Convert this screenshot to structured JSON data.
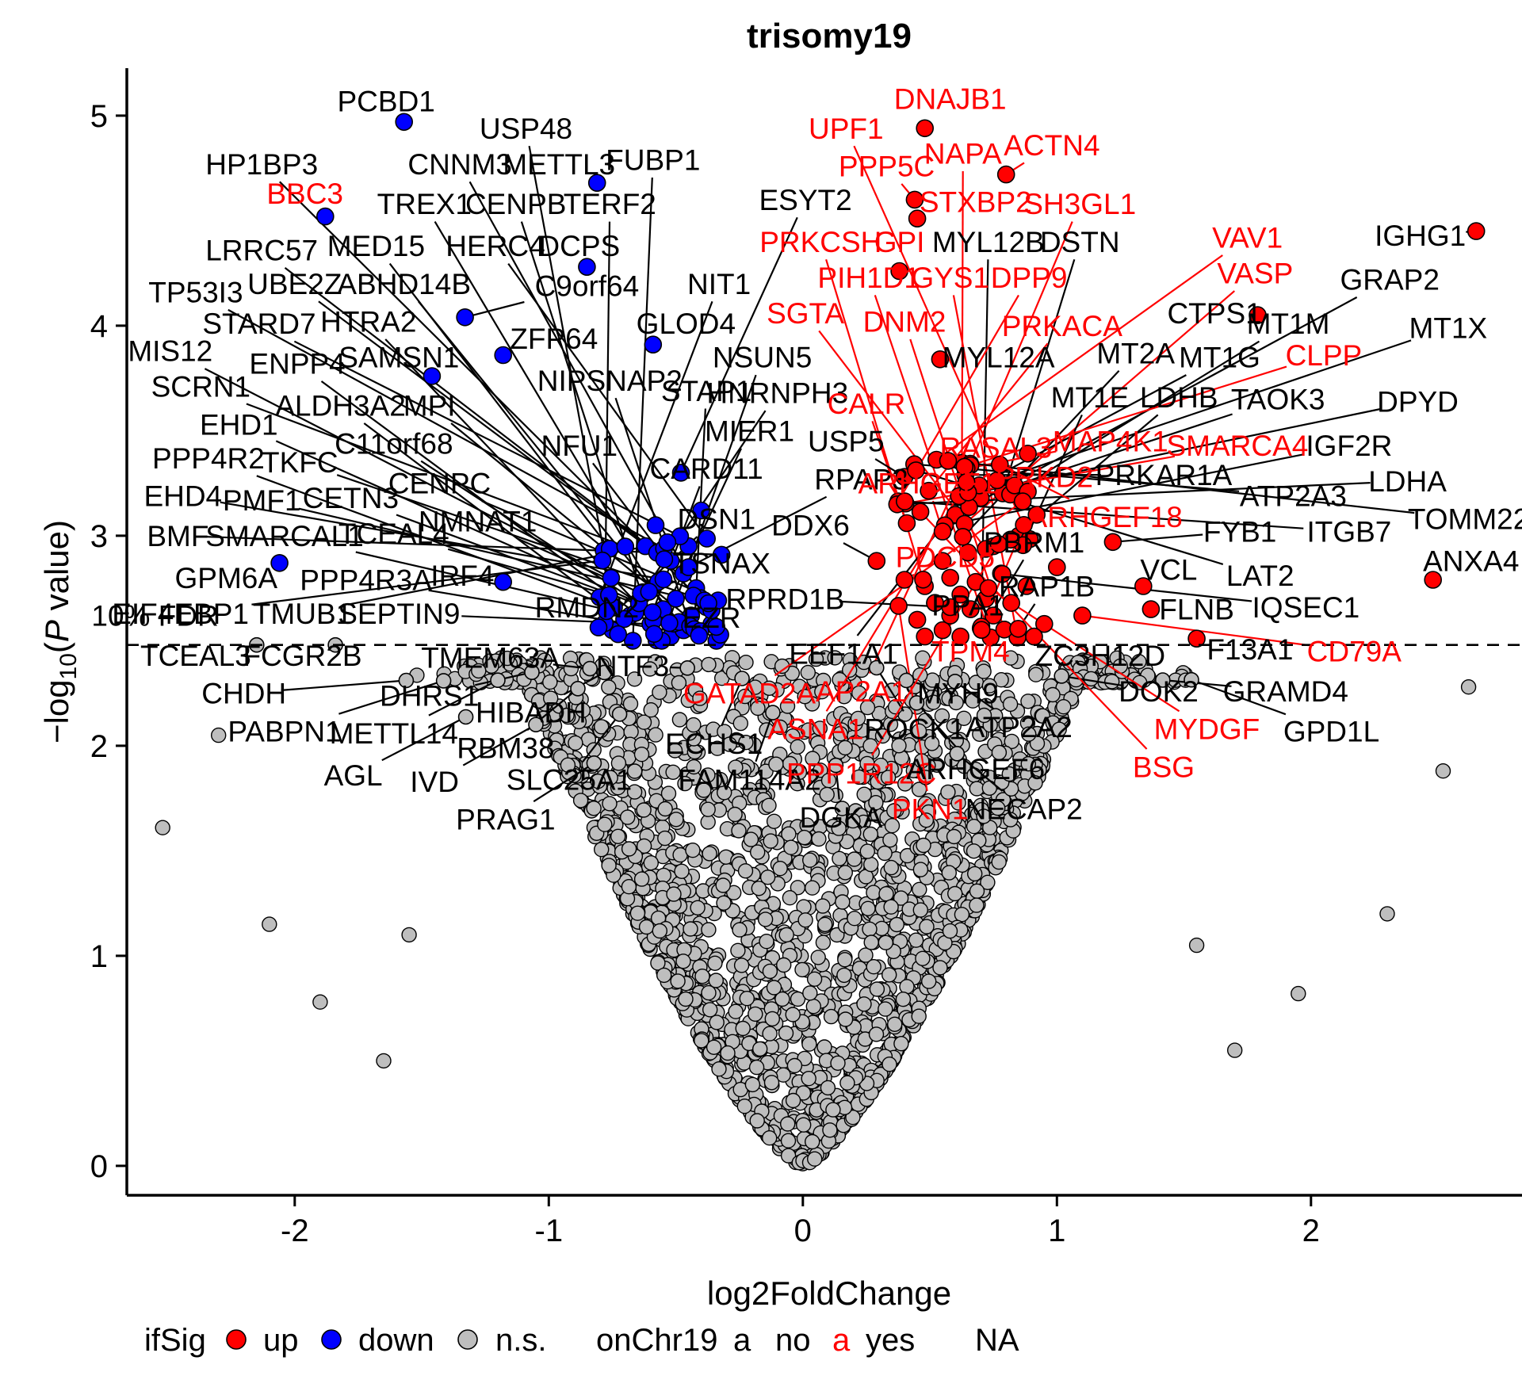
{
  "title": "trisomy19",
  "axes": {
    "x": {
      "label": "log2FoldChange",
      "tick_labels": [
        "-2",
        "-1",
        "0",
        "1",
        "2"
      ],
      "tick_values": [
        -2,
        -1,
        0,
        1,
        2
      ],
      "range": [
        -2.661,
        2.871
      ]
    },
    "y": {
      "label": "-log10(P value)",
      "label_parts": {
        "prefix": "−log",
        "sub": "10",
        "mid": "(",
        "italic": "P",
        "suffix": " value)"
      },
      "tick_labels": [
        "0",
        "1",
        "2",
        "3",
        "4",
        "5"
      ],
      "tick_values": [
        0,
        1,
        2,
        3,
        4,
        5
      ],
      "range": [
        -0.14,
        5.226
      ]
    }
  },
  "fdr": {
    "value": 2.48,
    "label": "10% FDR"
  },
  "legend": {
    "ifsig_title": "ifSig",
    "items": [
      {
        "label": "up",
        "color": "#FF0000"
      },
      {
        "label": "down",
        "color": "#0000FF"
      },
      {
        "label": "n.s.",
        "color": "#BEBEBE"
      }
    ],
    "onchr19_title": "onChr19",
    "glyph": "a",
    "chr_items": [
      {
        "label": "no",
        "color": "#000000"
      },
      {
        "label": "yes",
        "color": "#FF0000"
      }
    ],
    "na_label": "NA"
  },
  "colors": {
    "up": "#FF0000",
    "down": "#0000FF",
    "ns": "#BEBEBE",
    "chr19_label": "#FF0000",
    "other_label": "#000000"
  },
  "chart_data": {
    "type": "scatter",
    "title": "trisomy19",
    "xlabel": "log2FoldChange",
    "ylabel": "-log10(P value)",
    "xlim": [
      -2.661,
      2.871
    ],
    "ylim": [
      -0.14,
      5.226
    ],
    "sig_threshold_y": 2.48,
    "genes": [
      [
        "PCBD1",
        "k",
        -1.64,
        5.07,
        -1.57,
        4.97,
        "blue"
      ],
      [
        "USP48",
        "k",
        -1.09,
        4.94
      ],
      [
        "HP1BP3",
        "k",
        -2.13,
        4.77
      ],
      [
        "CNNM3",
        "k",
        -1.35,
        4.77
      ],
      [
        "METTL3",
        "k",
        -0.96,
        4.77,
        -0.81,
        4.68,
        "blue"
      ],
      [
        "FUBP1",
        "k",
        -0.59,
        4.79
      ],
      [
        "DNAJB1",
        "r",
        0.58,
        5.08,
        0.48,
        4.94,
        "red"
      ],
      [
        "UPF1",
        "r",
        0.17,
        4.94
      ],
      [
        "PPP5C",
        "r",
        0.33,
        4.76,
        0.44,
        4.6,
        "red"
      ],
      [
        "NAPA",
        "r",
        0.63,
        4.82
      ],
      [
        "ACTN4",
        "r",
        0.98,
        4.86,
        0.8,
        4.72,
        "red"
      ],
      [
        "BBC3",
        "r",
        -1.96,
        4.63,
        -1.88,
        4.52,
        "blue"
      ],
      [
        "TREX1",
        "k",
        -1.49,
        4.58
      ],
      [
        "CENPB",
        "k",
        -1.13,
        4.58
      ],
      [
        "TERF2",
        "k",
        -0.76,
        4.58
      ],
      [
        "ESYT2",
        "k",
        0.01,
        4.6,
        -0.48,
        3.3,
        "blue"
      ],
      [
        "STXBP2",
        "r",
        0.68,
        4.59,
        0.45,
        4.51,
        "red"
      ],
      [
        "SH3GL1",
        "r",
        1.09,
        4.58
      ],
      [
        "LRRC57",
        "k",
        -2.13,
        4.36
      ],
      [
        "MED15",
        "k",
        -1.68,
        4.38
      ],
      [
        "HERC4",
        "k",
        -1.21,
        4.38
      ],
      [
        "DCPS",
        "k",
        -0.88,
        4.38,
        -0.85,
        4.28,
        "blue"
      ],
      [
        "PRKCSH",
        "r",
        0.07,
        4.4
      ],
      [
        "GPI",
        "r",
        0.38,
        4.4,
        0.38,
        4.26,
        "red"
      ],
      [
        "MYL12B",
        "k",
        0.73,
        4.4
      ],
      [
        "DSTN",
        "k",
        1.09,
        4.4
      ],
      [
        "VAV1",
        "r",
        1.75,
        4.42
      ],
      [
        "IGHG1",
        "k",
        2.43,
        4.43,
        2.65,
        4.45,
        "red"
      ],
      [
        "TP53I3",
        "k",
        -2.39,
        4.16
      ],
      [
        "UBE2Z",
        "k",
        -2.0,
        4.2
      ],
      [
        "ABHD14B",
        "k",
        -1.57,
        4.2
      ],
      [
        "C9orf64",
        "k",
        -0.85,
        4.19,
        -1.33,
        4.04,
        "blue"
      ],
      [
        "NIT1",
        "k",
        -0.33,
        4.2
      ],
      [
        "PIH1D1",
        "r",
        0.26,
        4.23
      ],
      [
        "GYS1",
        "r",
        0.58,
        4.23
      ],
      [
        "DPP9",
        "r",
        0.89,
        4.23
      ],
      [
        "VASP",
        "r",
        1.78,
        4.25
      ],
      [
        "GRAP2",
        "k",
        2.31,
        4.22
      ],
      [
        "STARD7",
        "k",
        -2.14,
        4.01
      ],
      [
        "HTRA2",
        "k",
        -1.71,
        4.02
      ],
      [
        "ZFP64",
        "k",
        -0.98,
        3.94,
        -1.18,
        3.86,
        "blue"
      ],
      [
        "GLOD4",
        "k",
        -0.46,
        4.01,
        -0.59,
        3.91,
        "blue"
      ],
      [
        "SGTA",
        "r",
        0.01,
        4.06
      ],
      [
        "DNM2",
        "r",
        0.4,
        4.02
      ],
      [
        "PRKACA",
        "r",
        1.02,
        4.0
      ],
      [
        "CTPS1",
        "k",
        1.62,
        4.06,
        1.79,
        4.05,
        "red"
      ],
      [
        "MT1M",
        "k",
        1.91,
        4.01
      ],
      [
        "MT1X",
        "k",
        2.54,
        3.99
      ],
      [
        "MIS12",
        "k",
        -2.49,
        3.88
      ],
      [
        "ENPP4",
        "k",
        -1.99,
        3.82
      ],
      [
        "SAMSN1",
        "k",
        -1.59,
        3.85,
        -1.46,
        3.76,
        "blue"
      ],
      [
        "NIPSNAP2",
        "k",
        -0.76,
        3.74
      ],
      [
        "NSUN5",
        "k",
        -0.16,
        3.85
      ],
      [
        "MYL12A",
        "k",
        0.77,
        3.85,
        0.54,
        3.84,
        "red"
      ],
      [
        "MT2A",
        "k",
        1.31,
        3.87
      ],
      [
        "MT1G",
        "k",
        1.64,
        3.85
      ],
      [
        "CLPP",
        "r",
        2.05,
        3.86
      ],
      [
        "SCRN1",
        "k",
        -2.37,
        3.71
      ],
      [
        "ALDH3A2",
        "k",
        -1.82,
        3.62
      ],
      [
        "MPI",
        "k",
        -1.47,
        3.62
      ],
      [
        "STAP1",
        "k",
        -0.38,
        3.69
      ],
      [
        "HNRNPH3",
        "k",
        -0.1,
        3.68
      ],
      [
        "CALR",
        "r",
        0.25,
        3.63
      ],
      [
        "MT1E",
        "k",
        1.13,
        3.66
      ],
      [
        "LDHB",
        "k",
        1.48,
        3.66
      ],
      [
        "TAOK3",
        "k",
        1.87,
        3.65
      ],
      [
        "DPYD",
        "k",
        2.42,
        3.64
      ],
      [
        "EHD1",
        "k",
        -2.22,
        3.53
      ],
      [
        "C11orf68",
        "k",
        -1.61,
        3.44
      ],
      [
        "NFU1",
        "k",
        -0.88,
        3.43
      ],
      [
        "MIER1",
        "k",
        -0.21,
        3.5
      ],
      [
        "USP5",
        "k",
        0.17,
        3.45,
        0.4,
        3.28,
        "red"
      ],
      [
        "RASAL3",
        "r",
        0.76,
        3.42
      ],
      [
        "MAP4K1",
        "r",
        1.21,
        3.45
      ],
      [
        "SMARCA4",
        "r",
        1.71,
        3.43
      ],
      [
        "IGF2R",
        "k",
        2.15,
        3.43
      ],
      [
        "PPP4R2",
        "k",
        -2.34,
        3.37
      ],
      [
        "TKFC",
        "k",
        -1.98,
        3.35
      ],
      [
        "CENPC",
        "k",
        -1.43,
        3.25
      ],
      [
        "CARD11",
        "k",
        -0.38,
        3.32
      ],
      [
        "RPAP3",
        "k",
        0.23,
        3.27,
        -0.45,
        2.85,
        "blue"
      ],
      [
        "ARHGEF1",
        "r",
        0.49,
        3.25,
        0.55,
        3.02,
        "red"
      ],
      [
        "PRKD2",
        "r",
        0.95,
        3.28
      ],
      [
        "PRKAR1A",
        "k",
        1.42,
        3.29
      ],
      [
        "LDHA",
        "k",
        2.38,
        3.26
      ],
      [
        "EHD4",
        "k",
        -2.44,
        3.19
      ],
      [
        "PMF1",
        "k",
        -2.13,
        3.17
      ],
      [
        "CETN3",
        "k",
        -1.78,
        3.18
      ],
      [
        "NMNAT1",
        "k",
        -1.28,
        3.07
      ],
      [
        "DSN1",
        "k",
        -0.34,
        3.08
      ],
      [
        "DDX6",
        "k",
        0.03,
        3.05,
        0.29,
        2.88,
        "red"
      ],
      [
        "ARHGEF18",
        "r",
        1.19,
        3.09
      ],
      [
        "ATP2A3",
        "k",
        1.93,
        3.19
      ],
      [
        "TOMM22",
        "k",
        2.62,
        3.08
      ],
      [
        "BMF",
        "k",
        -2.46,
        3.0
      ],
      [
        "SMARCAL1",
        "k",
        -2.04,
        3.0
      ],
      [
        "TCEAL4",
        "k",
        -1.61,
        3.01
      ],
      [
        "TSNAX",
        "k",
        -0.32,
        2.87
      ],
      [
        "PDCD5",
        "r",
        0.56,
        2.9,
        0.4,
        2.79,
        "red"
      ],
      [
        "PBRM1",
        "k",
        0.91,
        2.97
      ],
      [
        "FYB1",
        "k",
        1.72,
        3.02,
        1.22,
        2.97,
        "red"
      ],
      [
        "ITGB7",
        "k",
        2.15,
        3.02
      ],
      [
        "ANXA4",
        "k",
        2.63,
        2.88,
        2.48,
        2.79,
        "red"
      ],
      [
        "GPM6A",
        "k",
        -2.27,
        2.8,
        -2.06,
        2.87,
        "blue"
      ],
      [
        "PPP4R3A",
        "k",
        -1.72,
        2.79
      ],
      [
        "IRF4",
        "k",
        -1.34,
        2.81,
        -1.18,
        2.78,
        "blue"
      ],
      [
        "RMDN2",
        "k",
        -0.85,
        2.66
      ],
      [
        "RPRD1B",
        "k",
        -0.07,
        2.7,
        0.58,
        2.66,
        "red"
      ],
      [
        "RAP1B",
        "k",
        0.96,
        2.76
      ],
      [
        "VCL",
        "k",
        1.44,
        2.84,
        1.34,
        2.76,
        "red"
      ],
      [
        "LAT2",
        "k",
        1.8,
        2.81
      ],
      [
        "EIF4EBP1",
        "k",
        -2.45,
        2.63
      ],
      [
        "TMUB1",
        "k",
        -1.97,
        2.63
      ],
      [
        "SEPTIN9",
        "k",
        -1.59,
        2.63
      ],
      [
        "EZR",
        "k",
        -0.36,
        2.61
      ],
      [
        "PPA1",
        "k",
        0.65,
        2.67,
        0.52,
        2.68,
        "red"
      ],
      [
        "FLNB",
        "k",
        1.55,
        2.65,
        1.37,
        2.65,
        "red"
      ],
      [
        "IQSEC1",
        "k",
        1.98,
        2.66
      ],
      [
        "TCEAL3",
        "k",
        -2.39,
        2.43,
        -2.15,
        2.48,
        "gray"
      ],
      [
        "FCGR2B",
        "k",
        -1.97,
        2.43,
        -1.84,
        2.48,
        "gray"
      ],
      [
        "TMEM63A",
        "k",
        -1.23,
        2.42
      ],
      [
        "EEF1A1",
        "k",
        0.16,
        2.44
      ],
      [
        "TPM4",
        "r",
        0.66,
        2.45
      ],
      [
        "ZC3H12D",
        "k",
        1.17,
        2.43,
        0.91,
        2.52,
        "red"
      ],
      [
        "F13A1",
        "k",
        1.76,
        2.46,
        1.55,
        2.51,
        "red"
      ],
      [
        "CD79A",
        "r",
        2.17,
        2.45,
        1.1,
        2.62,
        "red"
      ],
      [
        "CHDH",
        "k",
        -2.2,
        2.25
      ],
      [
        "DHRS1",
        "k",
        -1.47,
        2.24
      ],
      [
        "HIBADH",
        "k",
        -1.07,
        2.16
      ],
      [
        "NTF3",
        "k",
        -0.67,
        2.38
      ],
      [
        "GATAD2A",
        "r",
        -0.21,
        2.25
      ],
      [
        "AP2A1",
        "r",
        0.23,
        2.26
      ],
      [
        "MYH9",
        "k",
        0.61,
        2.25
      ],
      [
        "DOK2",
        "k",
        1.4,
        2.26
      ],
      [
        "GRAMD4",
        "k",
        1.9,
        2.26
      ],
      [
        "PABPN1",
        "k",
        -2.04,
        2.07
      ],
      [
        "METTL14",
        "k",
        -1.61,
        2.06
      ],
      [
        "RBM38",
        "k",
        -1.17,
        1.99
      ],
      [
        "ECHS1",
        "k",
        -0.35,
        2.01
      ],
      [
        "ASNA1",
        "r",
        0.05,
        2.08
      ],
      [
        "ROCK1",
        "k",
        0.44,
        2.08
      ],
      [
        "ATP2A2",
        "k",
        0.85,
        2.09
      ],
      [
        "MYDGF",
        "r",
        1.59,
        2.08
      ],
      [
        "GPD1L",
        "k",
        2.08,
        2.07
      ],
      [
        "AGL",
        "k",
        -1.77,
        1.86
      ],
      [
        "IVD",
        "k",
        -1.45,
        1.83
      ],
      [
        "SLC25A1",
        "k",
        -0.92,
        1.84
      ],
      [
        "FAM114A2",
        "k",
        -0.21,
        1.84
      ],
      [
        "PPP1R12C",
        "r",
        0.23,
        1.87
      ],
      [
        "ARHGEF6",
        "k",
        0.68,
        1.89
      ],
      [
        "BSG",
        "r",
        1.42,
        1.9
      ],
      [
        "PRAG1",
        "k",
        -1.17,
        1.65
      ],
      [
        "DGKA",
        "k",
        0.15,
        1.66
      ],
      [
        "PKN1",
        "r",
        0.5,
        1.7
      ],
      [
        "NECAP2",
        "k",
        0.87,
        1.7
      ]
    ],
    "extra_points": {
      "blue": [
        [
          -0.52,
          2.52
        ],
        [
          -0.47,
          2.55
        ],
        [
          -0.6,
          2.58
        ],
        [
          -0.44,
          2.62
        ],
        [
          -0.55,
          2.65
        ],
        [
          -0.38,
          2.66
        ],
        [
          -0.5,
          2.7
        ],
        [
          -0.63,
          2.72
        ],
        [
          -0.42,
          2.75
        ],
        [
          -0.57,
          2.78
        ],
        [
          -0.47,
          2.82
        ],
        [
          -0.36,
          2.58
        ],
        [
          -0.68,
          2.62
        ],
        [
          -0.52,
          2.88
        ],
        [
          -0.45,
          2.95
        ],
        [
          -0.58,
          3.05
        ],
        [
          -0.4,
          3.12
        ],
        [
          -0.75,
          2.55
        ],
        [
          -0.33,
          2.52
        ],
        [
          -0.62,
          2.95
        ]
      ],
      "red": [
        [
          0.48,
          2.52
        ],
        [
          0.55,
          2.55
        ],
        [
          0.62,
          2.52
        ],
        [
          0.7,
          2.56
        ],
        [
          0.45,
          2.6
        ],
        [
          0.58,
          2.62
        ],
        [
          0.66,
          2.65
        ],
        [
          0.75,
          2.62
        ],
        [
          0.52,
          2.68
        ],
        [
          0.62,
          2.72
        ],
        [
          0.72,
          2.7
        ],
        [
          0.82,
          2.68
        ],
        [
          0.48,
          2.76
        ],
        [
          0.58,
          2.8
        ],
        [
          0.68,
          2.78
        ],
        [
          0.78,
          2.82
        ],
        [
          0.88,
          2.76
        ],
        [
          0.55,
          2.88
        ],
        [
          0.65,
          2.92
        ],
        [
          0.75,
          2.95
        ],
        [
          0.85,
          3.0
        ],
        [
          0.6,
          3.1
        ],
        [
          0.7,
          3.18
        ],
        [
          0.92,
          3.1
        ],
        [
          1.0,
          2.85
        ],
        [
          0.95,
          2.58
        ]
      ],
      "gray": [
        [
          -2.52,
          1.61
        ],
        [
          -2.3,
          2.05
        ],
        [
          2.52,
          1.88
        ],
        [
          2.3,
          1.2
        ],
        [
          1.95,
          0.82
        ],
        [
          -1.9,
          0.78
        ],
        [
          2.62,
          2.28
        ],
        [
          -2.1,
          1.15
        ],
        [
          1.7,
          0.55
        ],
        [
          -1.65,
          0.5
        ],
        [
          1.55,
          1.05
        ],
        [
          -1.55,
          1.1
        ]
      ]
    },
    "background": {
      "count": 2000,
      "seed": 1234,
      "x_sigma": 0.57,
      "x_clip": [
        -2.6,
        2.82
      ],
      "funnel": "y = min_y + (2.42 - min_y) * u^1.9 ; min_y = min(2.3, 2.05*|x|^1.35)"
    }
  }
}
